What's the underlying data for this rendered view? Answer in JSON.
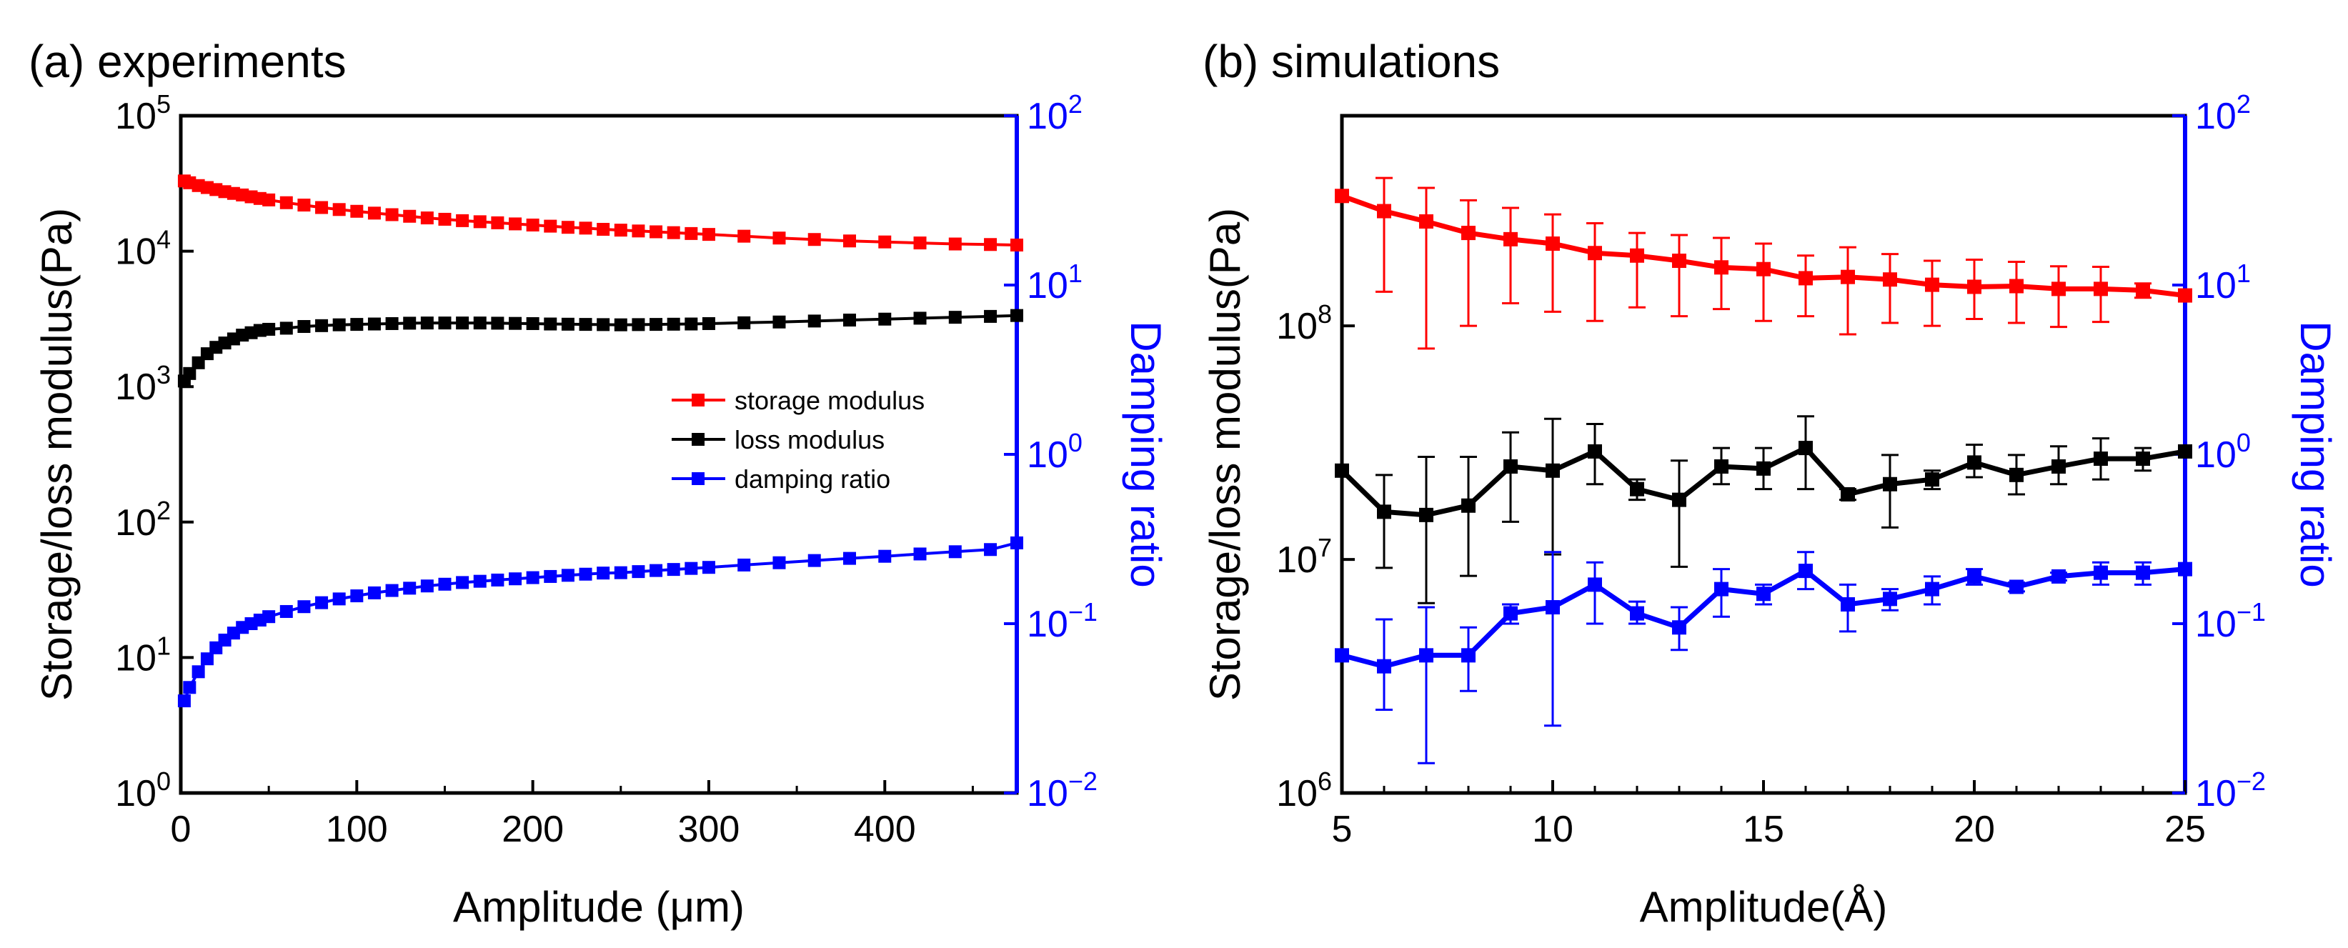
{
  "chart_data": [
    {
      "id": "experiments",
      "panel_title": "(a) experiments",
      "type": "scatter",
      "xlabel": "Amplitude (μm)",
      "ylabel": "Storage/loss modulus(Pa)",
      "y2label": "Damping ratio",
      "xlim": [
        0,
        475
      ],
      "ylim": [
        1,
        100000
      ],
      "y2lim": [
        0.01,
        100
      ],
      "yscale": "log",
      "y2scale": "log",
      "xticks": [
        0,
        100,
        200,
        300,
        400
      ],
      "xtick_labels": [
        "0",
        "100",
        "200",
        "300",
        "400"
      ],
      "ytick_labels": [
        {
          "base": "10",
          "exp": "0"
        },
        {
          "base": "10",
          "exp": "1"
        },
        {
          "base": "10",
          "exp": "2"
        },
        {
          "base": "10",
          "exp": "3"
        },
        {
          "base": "10",
          "exp": "4"
        },
        {
          "base": "10",
          "exp": "5"
        }
      ],
      "y2tick_labels": [
        {
          "base": "10",
          "exp": "−2"
        },
        {
          "base": "10",
          "exp": "−1"
        },
        {
          "base": "10",
          "exp": "0"
        },
        {
          "base": "10",
          "exp": "1"
        },
        {
          "base": "10",
          "exp": "2"
        }
      ],
      "legend": {
        "position": "center-right",
        "entries": [
          "storage modulus",
          "loss modulus",
          "damping ratio"
        ]
      },
      "x": [
        2,
        5,
        10,
        15,
        20,
        25,
        30,
        35,
        40,
        45,
        50,
        60,
        70,
        80,
        90,
        100,
        110,
        120,
        130,
        140,
        150,
        160,
        170,
        180,
        190,
        200,
        210,
        220,
        230,
        240,
        250,
        260,
        270,
        280,
        290,
        300,
        320,
        340,
        360,
        380,
        400,
        420,
        440,
        460,
        475
      ],
      "series": [
        {
          "name": "storage modulus",
          "color": "#ff0000",
          "axis": "left",
          "values": [
            33000,
            32000,
            30500,
            29500,
            28500,
            27500,
            26700,
            26000,
            25200,
            24500,
            23900,
            22800,
            21900,
            21000,
            20300,
            19700,
            19100,
            18600,
            18100,
            17600,
            17200,
            16800,
            16500,
            16200,
            15900,
            15600,
            15300,
            15000,
            14800,
            14500,
            14300,
            14100,
            13900,
            13700,
            13500,
            13300,
            12900,
            12500,
            12200,
            11900,
            11700,
            11500,
            11300,
            11200,
            11100
          ]
        },
        {
          "name": "loss modulus",
          "color": "#000000",
          "axis": "left",
          "values": [
            1100,
            1250,
            1500,
            1750,
            1950,
            2100,
            2250,
            2400,
            2500,
            2600,
            2650,
            2700,
            2780,
            2820,
            2860,
            2880,
            2900,
            2920,
            2940,
            2950,
            2950,
            2950,
            2950,
            2940,
            2930,
            2920,
            2900,
            2890,
            2880,
            2870,
            2860,
            2870,
            2880,
            2890,
            2900,
            2920,
            2960,
            3000,
            3050,
            3100,
            3150,
            3200,
            3250,
            3300,
            3350
          ]
        },
        {
          "name": "damping ratio",
          "color": "#0000ff",
          "axis": "right",
          "values": [
            0.035,
            0.042,
            0.052,
            0.062,
            0.072,
            0.08,
            0.088,
            0.095,
            0.1,
            0.105,
            0.11,
            0.118,
            0.126,
            0.133,
            0.14,
            0.146,
            0.152,
            0.157,
            0.162,
            0.167,
            0.171,
            0.175,
            0.178,
            0.181,
            0.184,
            0.187,
            0.19,
            0.193,
            0.196,
            0.199,
            0.2,
            0.203,
            0.206,
            0.209,
            0.212,
            0.215,
            0.222,
            0.229,
            0.236,
            0.243,
            0.25,
            0.258,
            0.266,
            0.274,
            0.3
          ]
        }
      ]
    },
    {
      "id": "simulations",
      "panel_title": "(b) simulations",
      "type": "scatter",
      "xlabel": "Amplitude(Å)",
      "ylabel": "Storage/loss modulus(Pa)",
      "y2label": "Damping ratio",
      "xlim": [
        5,
        25
      ],
      "ylim": [
        1000000,
        794000000
      ],
      "y2lim": [
        0.01,
        100
      ],
      "yscale": "log",
      "y2scale": "log",
      "xticks": [
        5,
        10,
        15,
        20,
        25
      ],
      "xtick_labels": [
        "5",
        "10",
        "15",
        "20",
        "25"
      ],
      "ytick_labels": [
        {
          "base": "10",
          "exp": "6"
        },
        {
          "base": "10",
          "exp": "7"
        },
        {
          "base": "10",
          "exp": "8"
        }
      ],
      "y2tick_labels": [
        {
          "base": "10",
          "exp": "−2"
        },
        {
          "base": "10",
          "exp": "−1"
        },
        {
          "base": "10",
          "exp": "0"
        },
        {
          "base": "10",
          "exp": "1"
        },
        {
          "base": "10",
          "exp": "2"
        }
      ],
      "x": [
        5,
        6,
        7,
        8,
        9,
        10,
        11,
        12,
        13,
        14,
        15,
        16,
        17,
        18,
        19,
        20,
        21,
        22,
        23,
        24,
        25
      ],
      "series": [
        {
          "name": "storage modulus",
          "color": "#ff0000",
          "axis": "left",
          "values": [
            360000000,
            310000000,
            280000000,
            250000000,
            235000000,
            225000000,
            205000000,
            200000000,
            190000000,
            178000000,
            175000000,
            160000000,
            162000000,
            158000000,
            150000000,
            147000000,
            148000000,
            144000000,
            144000000,
            142000000,
            135000000
          ],
          "err_low": [
            0,
            170000000,
            200000000,
            150000000,
            110000000,
            110000000,
            100000000,
            80000000,
            80000000,
            60000000,
            70000000,
            50000000,
            70000000,
            55000000,
            50000000,
            40000000,
            45000000,
            45000000,
            40000000,
            10000000,
            0
          ],
          "err_high": [
            0,
            120000000,
            110000000,
            95000000,
            85000000,
            75000000,
            70000000,
            50000000,
            55000000,
            60000000,
            50000000,
            40000000,
            55000000,
            45000000,
            40000000,
            45000000,
            40000000,
            36000000,
            35000000,
            10000000,
            0
          ]
        },
        {
          "name": "loss modulus",
          "color": "#000000",
          "axis": "left",
          "values": [
            24000000,
            16000000,
            15500000,
            17000000,
            25000000,
            24000000,
            29000000,
            20000000,
            18000000,
            25000000,
            24500000,
            30000000,
            19000000,
            21000000,
            22000000,
            26000000,
            23000000,
            25000000,
            27000000,
            27000000,
            29000000
          ],
          "err_low": [
            0,
            6800000,
            9000000,
            8500000,
            10500000,
            13500000,
            8000000,
            2000000,
            8700000,
            4000000,
            4500000,
            10000000,
            1000000,
            7300000,
            2000000,
            3500000,
            4000000,
            4000000,
            5000000,
            3000000,
            0
          ],
          "err_high": [
            0,
            7000000,
            12000000,
            10500000,
            10000000,
            16000000,
            9000000,
            2000000,
            8500000,
            5000000,
            5500000,
            11000000,
            1000000,
            7000000,
            2000000,
            5000000,
            5000000,
            5500000,
            6000000,
            3000000,
            0
          ]
        },
        {
          "name": "damping ratio",
          "color": "#0000ff",
          "axis": "right",
          "values": [
            0.065,
            0.056,
            0.065,
            0.065,
            0.115,
            0.125,
            0.17,
            0.115,
            0.095,
            0.16,
            0.15,
            0.205,
            0.13,
            0.14,
            0.16,
            0.19,
            0.165,
            0.19,
            0.2,
            0.2,
            0.21
          ],
          "err_low": [
            0,
            0.025,
            0.05,
            0.025,
            0.015,
            0.1,
            0.07,
            0.015,
            0.025,
            0.05,
            0.02,
            0.045,
            0.04,
            0.02,
            0.03,
            0.02,
            0.01,
            0.01,
            0.03,
            0.03,
            0
          ],
          "err_high": [
            0,
            0.05,
            0.06,
            0.03,
            0.015,
            0.14,
            0.06,
            0.02,
            0.03,
            0.05,
            0.02,
            0.06,
            0.04,
            0.02,
            0.03,
            0.02,
            0.01,
            0.01,
            0.03,
            0.03,
            0
          ]
        }
      ]
    }
  ]
}
